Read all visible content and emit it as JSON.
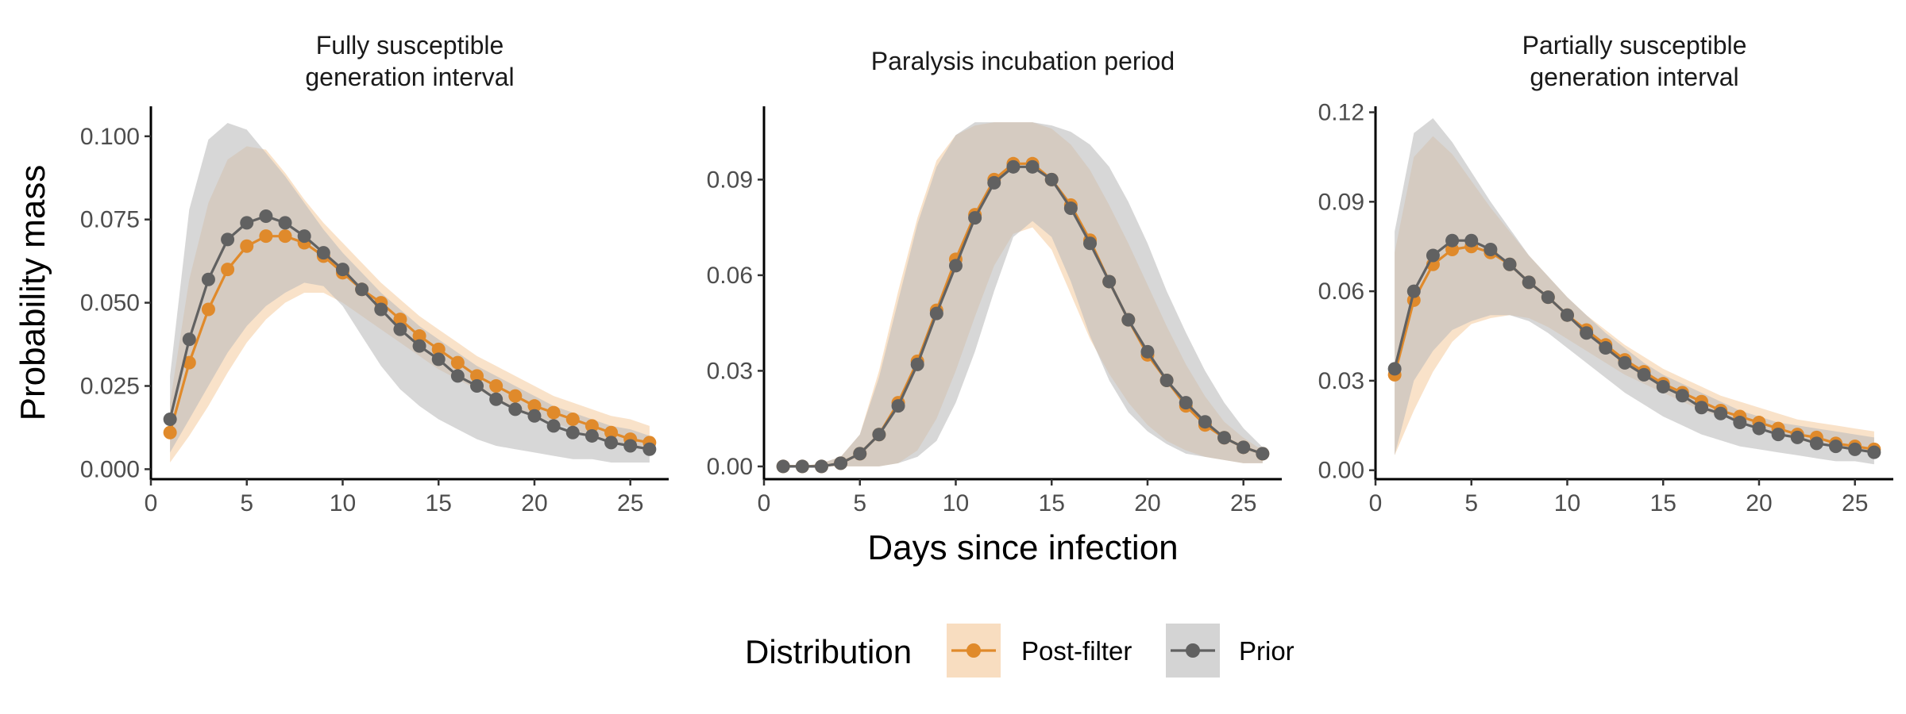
{
  "chart_data": {
    "type": "line",
    "xlabel": "Days since infection",
    "ylabel": "Probability mass",
    "legend": {
      "title": "Distribution",
      "position": "bottom",
      "entries": [
        {
          "name": "Post-filter",
          "color": "#E08A2B",
          "ribbon": "#F8DDC0"
        },
        {
          "name": "Prior",
          "color": "#616161",
          "ribbon": "#D4D4D4"
        }
      ]
    },
    "panels": [
      {
        "title_lines": [
          "Fully susceptible",
          "generation interval"
        ],
        "xlim": [
          0,
          27
        ],
        "x_ticks": [
          0,
          5,
          10,
          15,
          20,
          25
        ],
        "ylim": [
          -0.003,
          0.109
        ],
        "y_ticks": [
          0.0,
          0.025,
          0.05,
          0.075,
          0.1
        ],
        "y_tick_labels": [
          "0.000",
          "0.025",
          "0.050",
          "0.075",
          "0.100"
        ],
        "x": [
          1,
          2,
          3,
          4,
          5,
          6,
          7,
          8,
          9,
          10,
          11,
          12,
          13,
          14,
          15,
          16,
          17,
          18,
          19,
          20,
          21,
          22,
          23,
          24,
          25,
          26
        ],
        "series": [
          {
            "name": "Post-filter",
            "values": [
              0.011,
              0.032,
              0.048,
              0.06,
              0.067,
              0.07,
              0.07,
              0.068,
              0.064,
              0.059,
              0.054,
              0.05,
              0.045,
              0.04,
              0.036,
              0.032,
              0.028,
              0.025,
              0.022,
              0.019,
              0.017,
              0.015,
              0.013,
              0.011,
              0.009,
              0.008
            ],
            "lower": [
              0.002,
              0.01,
              0.019,
              0.029,
              0.038,
              0.045,
              0.05,
              0.053,
              0.053,
              0.05,
              0.046,
              0.042,
              0.038,
              0.034,
              0.03,
              0.027,
              0.024,
              0.021,
              0.018,
              0.016,
              0.014,
              0.012,
              0.01,
              0.008,
              0.007,
              0.006
            ],
            "upper": [
              0.02,
              0.057,
              0.08,
              0.093,
              0.097,
              0.096,
              0.089,
              0.081,
              0.074,
              0.068,
              0.062,
              0.056,
              0.051,
              0.046,
              0.042,
              0.038,
              0.034,
              0.031,
              0.028,
              0.025,
              0.022,
              0.02,
              0.018,
              0.016,
              0.015,
              0.013
            ]
          },
          {
            "name": "Prior",
            "values": [
              0.015,
              0.039,
              0.057,
              0.069,
              0.074,
              0.076,
              0.074,
              0.07,
              0.065,
              0.06,
              0.054,
              0.048,
              0.042,
              0.037,
              0.033,
              0.028,
              0.025,
              0.021,
              0.018,
              0.016,
              0.013,
              0.011,
              0.01,
              0.008,
              0.007,
              0.006
            ],
            "lower": [
              0.005,
              0.015,
              0.025,
              0.035,
              0.043,
              0.049,
              0.053,
              0.056,
              0.055,
              0.049,
              0.04,
              0.031,
              0.024,
              0.019,
              0.015,
              0.012,
              0.009,
              0.007,
              0.006,
              0.005,
              0.004,
              0.003,
              0.003,
              0.002,
              0.002,
              0.002
            ],
            "upper": [
              0.028,
              0.078,
              0.099,
              0.104,
              0.102,
              0.095,
              0.088,
              0.08,
              0.072,
              0.065,
              0.059,
              0.053,
              0.048,
              0.043,
              0.039,
              0.035,
              0.031,
              0.028,
              0.025,
              0.022,
              0.019,
              0.017,
              0.015,
              0.013,
              0.012,
              0.01
            ]
          }
        ]
      },
      {
        "title_lines": [
          "Paralysis incubation period"
        ],
        "xlim": [
          0,
          27
        ],
        "x_ticks": [
          0,
          5,
          10,
          15,
          20,
          25
        ],
        "ylim": [
          -0.004,
          0.113
        ],
        "y_ticks": [
          0.0,
          0.03,
          0.06,
          0.09
        ],
        "y_tick_labels": [
          "0.00",
          "0.03",
          "0.06",
          "0.09"
        ],
        "x": [
          1,
          2,
          3,
          4,
          5,
          6,
          7,
          8,
          9,
          10,
          11,
          12,
          13,
          14,
          15,
          16,
          17,
          18,
          19,
          20,
          21,
          22,
          23,
          24,
          25,
          26
        ],
        "series": [
          {
            "name": "Post-filter",
            "values": [
              0.0,
              0.0,
              0.0,
              0.001,
              0.004,
              0.01,
              0.02,
              0.033,
              0.049,
              0.065,
              0.079,
              0.09,
              0.095,
              0.095,
              0.09,
              0.082,
              0.071,
              0.058,
              0.046,
              0.035,
              0.027,
              0.019,
              0.013,
              0.009,
              0.006,
              0.004
            ],
            "lower": [
              0.0,
              0.0,
              0.0,
              0.0,
              0.0,
              0.0,
              0.001,
              0.005,
              0.015,
              0.03,
              0.047,
              0.063,
              0.073,
              0.075,
              0.068,
              0.054,
              0.04,
              0.029,
              0.02,
              0.013,
              0.008,
              0.005,
              0.003,
              0.002,
              0.001,
              0.001
            ],
            "upper": [
              0.0,
              0.0,
              0.001,
              0.003,
              0.01,
              0.03,
              0.055,
              0.078,
              0.096,
              0.104,
              0.107,
              0.108,
              0.108,
              0.108,
              0.106,
              0.101,
              0.093,
              0.082,
              0.07,
              0.057,
              0.044,
              0.032,
              0.022,
              0.014,
              0.009,
              0.005
            ]
          },
          {
            "name": "Prior",
            "values": [
              0.0,
              0.0,
              0.0,
              0.001,
              0.004,
              0.01,
              0.019,
              0.032,
              0.048,
              0.063,
              0.078,
              0.089,
              0.094,
              0.094,
              0.09,
              0.081,
              0.07,
              0.058,
              0.046,
              0.036,
              0.027,
              0.02,
              0.014,
              0.009,
              0.006,
              0.004
            ],
            "lower": [
              0.0,
              0.0,
              0.0,
              0.0,
              0.0,
              0.0,
              0.001,
              0.003,
              0.008,
              0.02,
              0.036,
              0.055,
              0.072,
              0.077,
              0.072,
              0.058,
              0.041,
              0.027,
              0.017,
              0.011,
              0.007,
              0.004,
              0.003,
              0.002,
              0.001,
              0.001
            ],
            "upper": [
              0.0,
              0.0,
              0.001,
              0.003,
              0.01,
              0.028,
              0.052,
              0.076,
              0.094,
              0.104,
              0.108,
              0.108,
              0.108,
              0.108,
              0.107,
              0.105,
              0.101,
              0.094,
              0.083,
              0.07,
              0.055,
              0.042,
              0.03,
              0.02,
              0.012,
              0.006
            ]
          }
        ]
      },
      {
        "title_lines": [
          "Partially susceptible",
          "generation interval"
        ],
        "xlim": [
          0,
          27
        ],
        "x_ticks": [
          0,
          5,
          10,
          15,
          20,
          25
        ],
        "ylim": [
          -0.003,
          0.122
        ],
        "y_ticks": [
          0.0,
          0.03,
          0.06,
          0.09,
          0.12
        ],
        "y_tick_labels": [
          "0.00",
          "0.03",
          "0.06",
          "0.09",
          "0.12"
        ],
        "x": [
          1,
          2,
          3,
          4,
          5,
          6,
          7,
          8,
          9,
          10,
          11,
          12,
          13,
          14,
          15,
          16,
          17,
          18,
          19,
          20,
          21,
          22,
          23,
          24,
          25,
          26
        ],
        "series": [
          {
            "name": "Post-filter",
            "values": [
              0.032,
              0.057,
              0.069,
              0.074,
              0.075,
              0.073,
              0.069,
              0.063,
              0.058,
              0.052,
              0.047,
              0.042,
              0.037,
              0.033,
              0.029,
              0.026,
              0.023,
              0.02,
              0.018,
              0.016,
              0.014,
              0.012,
              0.011,
              0.009,
              0.008,
              0.007
            ],
            "lower": [
              0.005,
              0.02,
              0.033,
              0.043,
              0.049,
              0.051,
              0.052,
              0.051,
              0.048,
              0.044,
              0.04,
              0.036,
              0.032,
              0.029,
              0.026,
              0.023,
              0.02,
              0.018,
              0.016,
              0.014,
              0.012,
              0.01,
              0.009,
              0.008,
              0.007,
              0.006
            ],
            "upper": [
              0.073,
              0.105,
              0.112,
              0.106,
              0.097,
              0.088,
              0.08,
              0.072,
              0.065,
              0.058,
              0.052,
              0.047,
              0.042,
              0.038,
              0.034,
              0.031,
              0.028,
              0.025,
              0.023,
              0.021,
              0.019,
              0.017,
              0.016,
              0.015,
              0.014,
              0.013
            ]
          },
          {
            "name": "Prior",
            "values": [
              0.034,
              0.06,
              0.072,
              0.077,
              0.077,
              0.074,
              0.069,
              0.063,
              0.058,
              0.052,
              0.046,
              0.041,
              0.036,
              0.032,
              0.028,
              0.025,
              0.021,
              0.019,
              0.016,
              0.014,
              0.012,
              0.011,
              0.009,
              0.008,
              0.007,
              0.006
            ],
            "lower": [
              0.005,
              0.03,
              0.04,
              0.047,
              0.05,
              0.052,
              0.052,
              0.05,
              0.046,
              0.041,
              0.036,
              0.031,
              0.026,
              0.022,
              0.018,
              0.015,
              0.012,
              0.01,
              0.008,
              0.007,
              0.006,
              0.005,
              0.004,
              0.003,
              0.003,
              0.002
            ],
            "upper": [
              0.08,
              0.113,
              0.118,
              0.11,
              0.1,
              0.09,
              0.081,
              0.072,
              0.065,
              0.058,
              0.052,
              0.046,
              0.041,
              0.036,
              0.032,
              0.029,
              0.026,
              0.023,
              0.02,
              0.018,
              0.016,
              0.015,
              0.014,
              0.013,
              0.012,
              0.011
            ]
          }
        ]
      }
    ]
  }
}
